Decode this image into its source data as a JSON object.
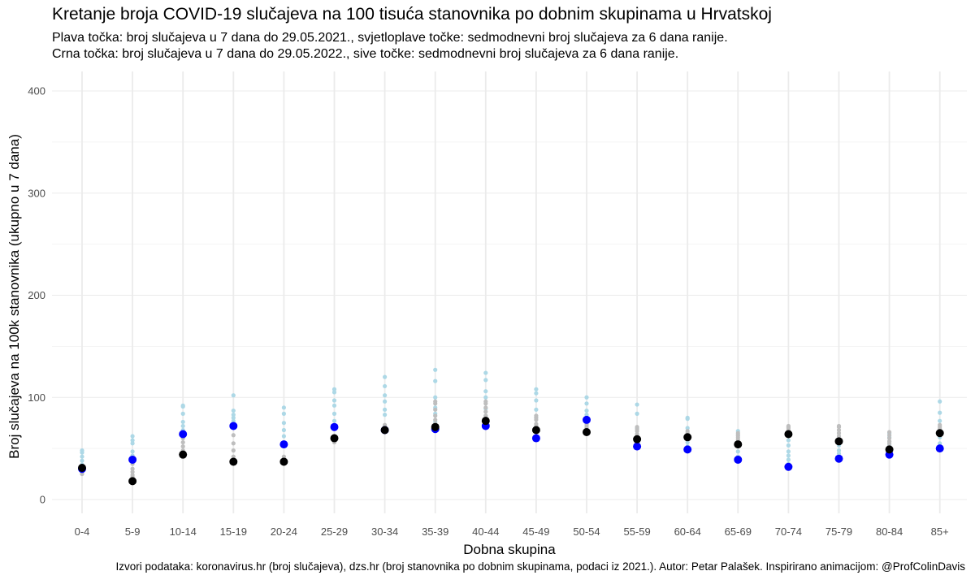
{
  "header": {
    "title": "Kretanje broja COVID-19 slučajeva na 100 tisuća stanovnika po dobnim skupinama u Hrvatskoj",
    "subtitle_line1": "Plava točka: broj slučajeva u 7 dana do 29.05.2021., svjetloplave točke: sedmodnevni broj slučajeva za 6 dana ranije.",
    "subtitle_line2": "Crna točka: broj slučajeva u 7 dana do 29.05.2022., sive točke: sedmodnevni broj slučajeva za 6 dana ranije."
  },
  "caption": "Izvori podataka: koronavirus.hr (broj slučajeva), dzs.hr (broj stanovnika po dobnim skupinama, podaci iz 2021.). Autor: Petar Palašek. Inspirirano animacijom: @ProfColinDavis",
  "chart_data": {
    "type": "scatter",
    "xlabel": "Dobna skupina",
    "ylabel": "Broj slučajeva na 100k stanovnika (ukupno u 7 dana)",
    "ylim": [
      0,
      400
    ],
    "yticks": [
      0,
      100,
      200,
      300,
      400
    ],
    "grid": true,
    "categories": [
      "0-4",
      "5-9",
      "10-14",
      "15-19",
      "20-24",
      "25-29",
      "30-34",
      "35-39",
      "40-44",
      "45-49",
      "50-54",
      "55-59",
      "60-64",
      "65-69",
      "70-74",
      "75-79",
      "80-84",
      "85+"
    ],
    "colors": {
      "current_2021": "#0000ff",
      "earlier_2021": "#add8e6",
      "current_2022": "#000000",
      "earlier_2022": "#bebebe"
    },
    "series": [
      {
        "name": "earlier_2021",
        "values": [
          [
            48,
            46,
            42,
            38,
            34,
            32
          ],
          [
            62,
            58,
            55,
            47,
            43,
            40
          ],
          [
            92,
            91,
            84,
            76,
            72,
            68
          ],
          [
            102,
            87,
            83,
            80,
            77,
            74
          ],
          [
            90,
            84,
            75,
            68,
            62,
            56
          ],
          [
            108,
            105,
            97,
            92,
            84,
            77
          ],
          [
            120,
            111,
            102,
            96,
            88,
            83
          ],
          [
            127,
            116,
            100,
            90,
            84,
            76
          ],
          [
            124,
            117,
            106,
            100,
            89,
            82
          ],
          [
            108,
            104,
            97,
            88,
            80,
            72
          ],
          [
            100,
            94,
            87,
            83,
            80,
            76
          ],
          [
            93,
            84,
            70,
            64,
            60,
            56
          ],
          [
            80,
            79,
            70,
            62,
            56,
            52
          ],
          [
            67,
            63,
            57,
            52,
            47,
            42
          ],
          [
            58,
            53,
            47,
            43,
            39,
            35
          ],
          [
            62,
            57,
            53,
            48,
            45,
            42
          ],
          [
            65,
            61,
            57,
            53,
            49,
            46
          ],
          [
            96,
            85,
            77,
            68,
            61,
            55
          ]
        ]
      },
      {
        "name": "earlier_2022",
        "values": [
          [
            33,
            31,
            30,
            28,
            27,
            25
          ],
          [
            40,
            35,
            30,
            27,
            24,
            22
          ],
          [
            64,
            60,
            56,
            52,
            48,
            46
          ],
          [
            72,
            63,
            55,
            48,
            42,
            39
          ],
          [
            42,
            40,
            38,
            37,
            36,
            35
          ],
          [
            62,
            60,
            59,
            58,
            57,
            56
          ],
          [
            73,
            71,
            70,
            69,
            68,
            67
          ],
          [
            96,
            94,
            88,
            82,
            78,
            74
          ],
          [
            96,
            94,
            90,
            86,
            82,
            79
          ],
          [
            82,
            80,
            78,
            74,
            72,
            70
          ],
          [
            76,
            74,
            72,
            70,
            68,
            66
          ],
          [
            71,
            69,
            67,
            64,
            62,
            60
          ],
          [
            67,
            65,
            64,
            62,
            61,
            60
          ],
          [
            65,
            63,
            61,
            59,
            57,
            55
          ],
          [
            72,
            71,
            70,
            68,
            67,
            66
          ],
          [
            72,
            71,
            68,
            65,
            62,
            59
          ],
          [
            66,
            63,
            60,
            57,
            55,
            52
          ],
          [
            73,
            71,
            69,
            68,
            66,
            65
          ]
        ]
      },
      {
        "name": "current_2021",
        "values": [
          30,
          39,
          64,
          72,
          54,
          71,
          68,
          69,
          72,
          60,
          78,
          52,
          49,
          39,
          32,
          40,
          44,
          50
        ]
      },
      {
        "name": "current_2022",
        "values": [
          31,
          18,
          44,
          37,
          37,
          60,
          68,
          71,
          77,
          68,
          66,
          59,
          61,
          54,
          64,
          57,
          49,
          65
        ]
      }
    ]
  }
}
